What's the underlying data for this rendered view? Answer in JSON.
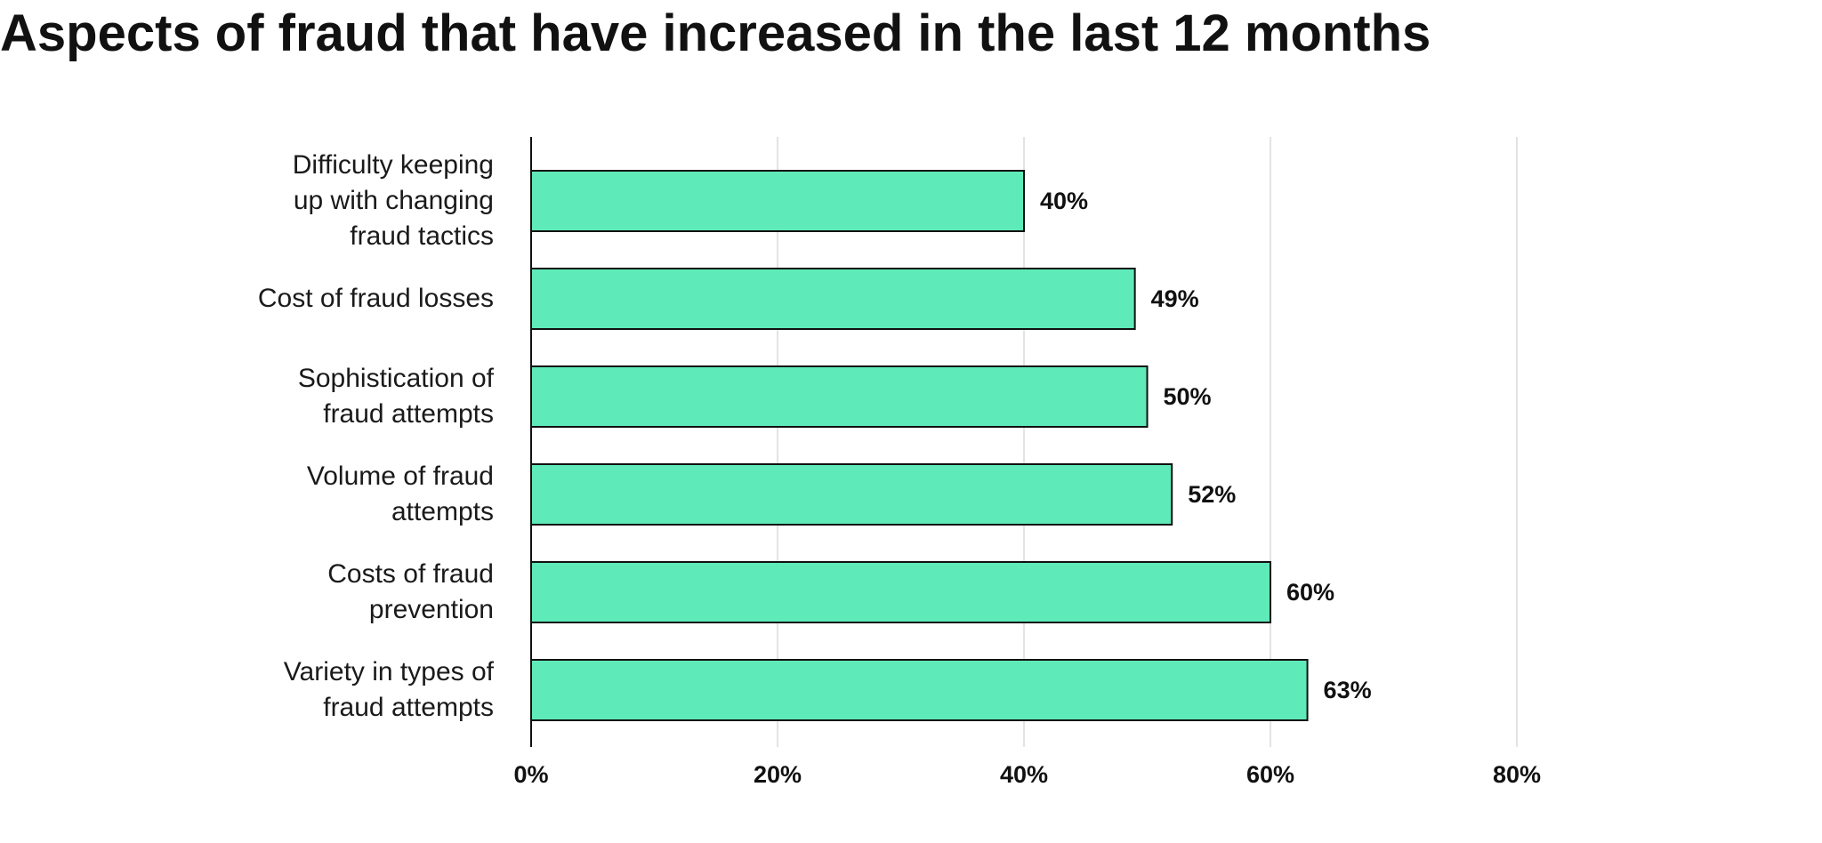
{
  "chart_data": {
    "type": "bar",
    "orientation": "horizontal",
    "title": "Aspects of fraud that have increased in the last 12 months",
    "categories": [
      "Difficulty keeping\nup with changing\nfraud tactics",
      "Cost of fraud losses",
      "Sophistication of\nfraud attempts",
      "Volume of fraud\nattempts",
      "Costs of fraud\nprevention",
      "Variety in types of\nfraud attempts"
    ],
    "values": [
      40,
      49,
      50,
      52,
      60,
      63
    ],
    "value_labels": [
      "40%",
      "49%",
      "50%",
      "52%",
      "60%",
      "63%"
    ],
    "color": "#5eeab9",
    "xlim": [
      0,
      80
    ],
    "xticks": [
      {
        "value": 0,
        "label": "0%"
      },
      {
        "value": 20,
        "label": "20%"
      },
      {
        "value": 40,
        "label": "40%"
      },
      {
        "value": 60,
        "label": "60%"
      },
      {
        "value": 80,
        "label": "80%"
      }
    ],
    "grid": true
  }
}
